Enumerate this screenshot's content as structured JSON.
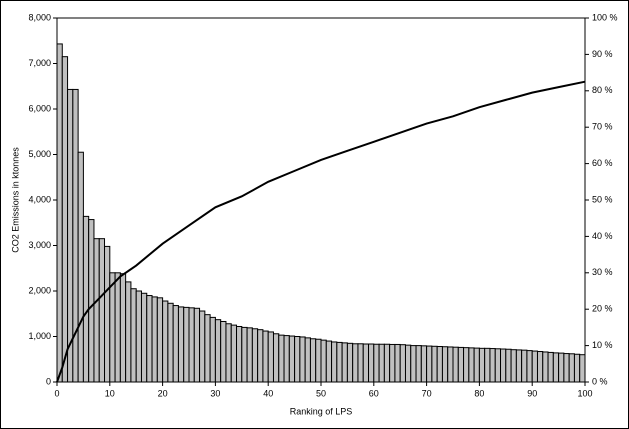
{
  "chart_data": {
    "type": "bar",
    "xlabel": "Ranking of LPS",
    "ylabel": "CO2 Emissions in ktonnes",
    "xlim": [
      0,
      100
    ],
    "xticks": [
      0,
      10,
      20,
      30,
      40,
      50,
      60,
      70,
      80,
      90,
      100
    ],
    "ylim": [
      0,
      8000
    ],
    "yticks": [
      0,
      {
        "value": 1000,
        "label": "1,000"
      },
      {
        "value": 2000,
        "label": "2,000"
      },
      {
        "value": 3000,
        "label": "3,000"
      },
      {
        "value": 4000,
        "label": "4,000"
      },
      {
        "value": 5000,
        "label": "5,000"
      },
      {
        "value": 6000,
        "label": "6,000"
      },
      {
        "value": 7000,
        "label": "7,000"
      },
      {
        "value": 8000,
        "label": "8,000"
      }
    ],
    "y2lim": [
      0,
      100
    ],
    "y2ticks": [
      {
        "value": 0,
        "label": "0 %"
      },
      {
        "value": 10,
        "label": "10 %"
      },
      {
        "value": 20,
        "label": "20 %"
      },
      {
        "value": 30,
        "label": "30 %"
      },
      {
        "value": 40,
        "label": "40 %"
      },
      {
        "value": 50,
        "label": "50 %"
      },
      {
        "value": 60,
        "label": "60 %"
      },
      {
        "value": 70,
        "label": "70 %"
      },
      {
        "value": 80,
        "label": "80 %"
      },
      {
        "value": 90,
        "label": "90 %"
      },
      {
        "value": 100,
        "label": "100 %"
      }
    ],
    "series": [
      {
        "type": "bar",
        "color": "#c0c0c0",
        "x": [
          1,
          2,
          3,
          4,
          5,
          6,
          7,
          8,
          9,
          10,
          11,
          12,
          13,
          14,
          15,
          16,
          17,
          18,
          19,
          20,
          21,
          22,
          23,
          24,
          25,
          26,
          27,
          28,
          29,
          30,
          31,
          32,
          33,
          34,
          35,
          36,
          37,
          38,
          39,
          40,
          41,
          42,
          43,
          44,
          45,
          46,
          47,
          48,
          49,
          50,
          51,
          52,
          53,
          54,
          55,
          56,
          57,
          58,
          59,
          60,
          61,
          62,
          63,
          64,
          65,
          66,
          67,
          68,
          69,
          70,
          71,
          72,
          73,
          74,
          75,
          76,
          77,
          78,
          79,
          80,
          81,
          82,
          83,
          84,
          85,
          86,
          87,
          88,
          89,
          90,
          91,
          92,
          93,
          94,
          95,
          96,
          97,
          98,
          99,
          100
        ],
        "values": [
          7430,
          7150,
          6430,
          6430,
          5050,
          3640,
          3570,
          3150,
          3150,
          2980,
          2400,
          2400,
          2380,
          2200,
          2050,
          2000,
          1950,
          1900,
          1870,
          1850,
          1780,
          1730,
          1680,
          1650,
          1640,
          1630,
          1620,
          1560,
          1480,
          1420,
          1370,
          1330,
          1280,
          1250,
          1220,
          1200,
          1190,
          1170,
          1150,
          1120,
          1100,
          1060,
          1030,
          1020,
          1010,
          1000,
          990,
          970,
          950,
          940,
          920,
          900,
          880,
          870,
          860,
          850,
          840,
          840,
          835,
          835,
          830,
          830,
          830,
          825,
          825,
          820,
          810,
          800,
          800,
          795,
          790,
          785,
          780,
          775,
          770,
          765,
          760,
          755,
          750,
          745,
          740,
          740,
          735,
          730,
          725,
          720,
          710,
          705,
          700,
          690,
          680,
          670,
          660,
          650,
          640,
          635,
          625,
          620,
          610,
          600
        ]
      },
      {
        "type": "line",
        "color": "#000000",
        "axis": "y2",
        "x": [
          0,
          1,
          2,
          3,
          4,
          5,
          6,
          8,
          10,
          12,
          15,
          20,
          25,
          30,
          35,
          40,
          45,
          50,
          55,
          60,
          65,
          70,
          75,
          80,
          85,
          90,
          95,
          100
        ],
        "values": [
          0,
          4,
          9,
          12,
          15,
          18,
          20,
          23,
          26,
          29,
          32,
          38,
          43,
          48,
          51,
          55,
          58,
          61,
          63.5,
          66,
          68.5,
          71,
          73,
          75.5,
          77.5,
          79.5,
          81,
          82.5
        ]
      }
    ]
  }
}
